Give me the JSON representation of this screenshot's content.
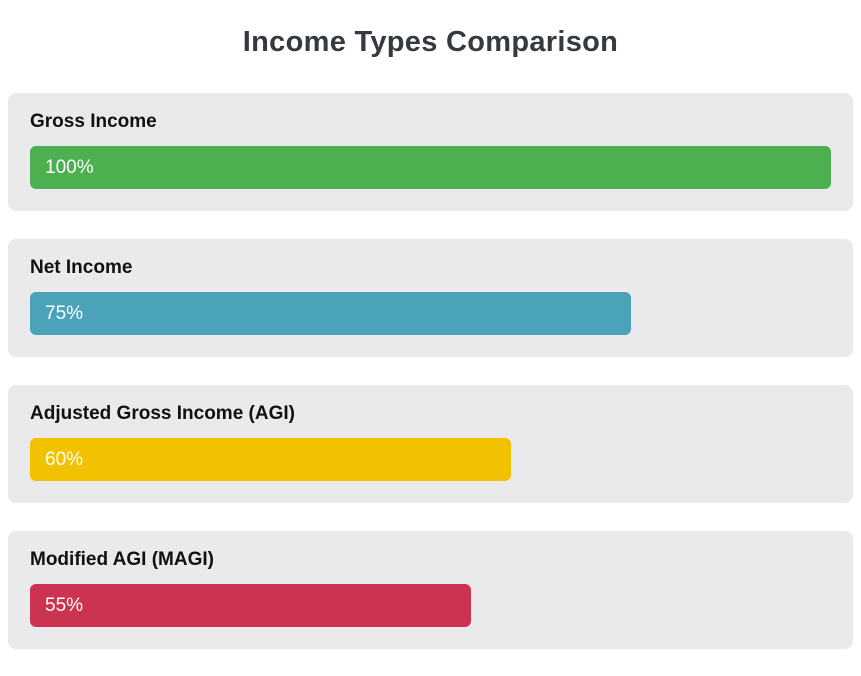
{
  "title": "Income Types Comparison",
  "chart_data": {
    "type": "bar",
    "orientation": "horizontal",
    "title": "Income Types Comparison",
    "categories": [
      "Gross Income",
      "Net Income",
      "Adjusted Gross Income (AGI)",
      "Modified AGI (MAGI)"
    ],
    "values": [
      100,
      75,
      60,
      55
    ],
    "value_labels": [
      "100%",
      "75%",
      "60%",
      "55%"
    ],
    "bar_colors": [
      "#4caf50",
      "#4ba3ba",
      "#f2c200",
      "#cc3350"
    ],
    "xlim": [
      0,
      100
    ],
    "grid": false,
    "legend": "none",
    "card_background": "#eaeaed",
    "page_background": "#ffffff"
  }
}
